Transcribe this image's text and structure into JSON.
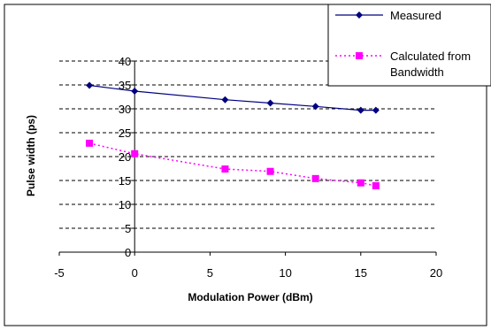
{
  "chart_data": {
    "type": "line",
    "title": "",
    "xlabel": "Modulation Power (dBm)",
    "ylabel": "Pulse width (ps)",
    "xlim": [
      -5,
      20
    ],
    "ylim": [
      0,
      40
    ],
    "x_ticks": [
      "-5",
      "0",
      "5",
      "10",
      "15",
      "20"
    ],
    "y_ticks": [
      "0",
      "5",
      "10",
      "15",
      "20",
      "25",
      "30",
      "35",
      "40"
    ],
    "grid": "horizontal dashed",
    "legend_position": "top-right",
    "series": [
      {
        "name": "Measured",
        "color": "#000080",
        "marker": "diamond",
        "line": "solid",
        "x": [
          -3,
          0,
          6,
          9,
          12,
          15,
          16
        ],
        "y": [
          34.9,
          33.7,
          31.9,
          31.2,
          30.5,
          29.7,
          29.7
        ]
      },
      {
        "name": "Calculated from Bandwidth",
        "name_lines": [
          "Calculated from",
          "Bandwidth"
        ],
        "color": "#ff00ff",
        "marker": "square",
        "line": "dotted",
        "x": [
          -3,
          0,
          6,
          9,
          12,
          15,
          16
        ],
        "y": [
          22.8,
          20.6,
          17.4,
          16.9,
          15.4,
          14.5,
          13.9
        ]
      }
    ]
  }
}
